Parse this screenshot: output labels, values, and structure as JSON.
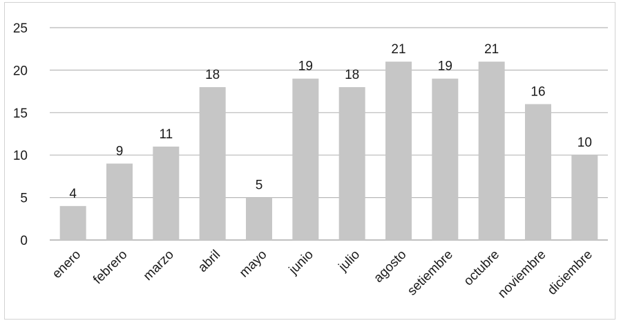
{
  "chart_data": {
    "type": "bar",
    "categories": [
      "enero",
      "febrero",
      "marzo",
      "abril",
      "mayo",
      "junio",
      "julio",
      "agosto",
      "setiembre",
      "octubre",
      "noviembre",
      "diciembre"
    ],
    "values": [
      4,
      9,
      11,
      18,
      5,
      19,
      18,
      21,
      19,
      21,
      16,
      10
    ],
    "data_labels": [
      "4",
      "9",
      "11",
      "18",
      "5",
      "19",
      "18",
      "21",
      "19",
      "21",
      "16",
      "10"
    ],
    "y_ticks": [
      "0",
      "5",
      "10",
      "15",
      "20",
      "25"
    ],
    "ylim": [
      0,
      25
    ],
    "title": "",
    "xlabel": "",
    "ylabel": "",
    "grid": true,
    "legend": "none",
    "colors": {
      "bar": "#c6c6c6",
      "grid": "#b8b8b8"
    }
  }
}
